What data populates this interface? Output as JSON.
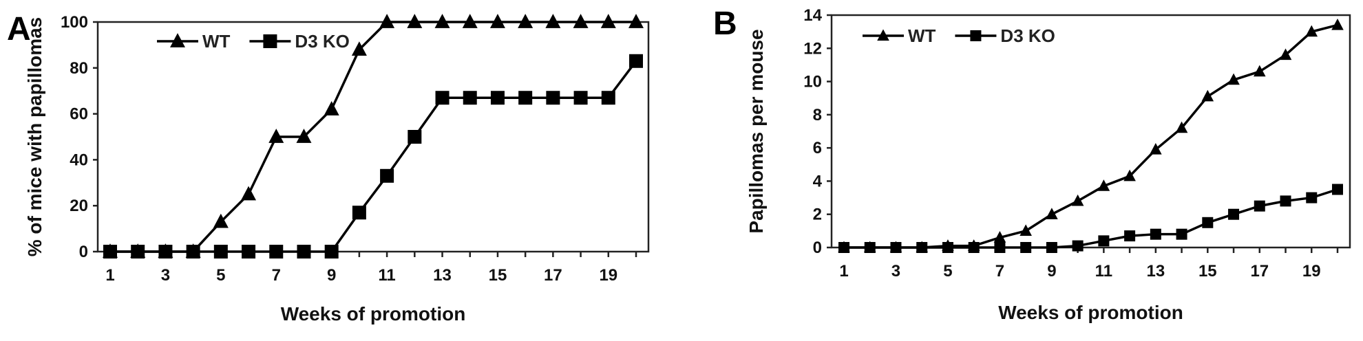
{
  "chart_data": [
    {
      "panel_label": "A",
      "type": "line",
      "xlabel": "Weeks of promotion",
      "ylabel": "% of mice with papillomas",
      "xlim": [
        1,
        20
      ],
      "ylim": [
        0,
        100
      ],
      "x_ticks": [
        1,
        3,
        5,
        7,
        9,
        11,
        13,
        15,
        17,
        19
      ],
      "y_ticks": [
        0,
        20,
        40,
        60,
        80,
        100
      ],
      "grid": false,
      "legend_position": "top-left",
      "x": [
        1,
        2,
        3,
        4,
        5,
        6,
        7,
        8,
        9,
        10,
        11,
        12,
        13,
        14,
        15,
        16,
        17,
        18,
        19,
        20
      ],
      "series": [
        {
          "name": "WT",
          "marker": "triangle",
          "values": [
            0,
            0,
            0,
            0,
            13,
            25,
            50,
            50,
            62,
            88,
            100,
            100,
            100,
            100,
            100,
            100,
            100,
            100,
            100,
            100
          ]
        },
        {
          "name": "D3 KO",
          "marker": "square",
          "values": [
            0,
            0,
            0,
            0,
            0,
            0,
            0,
            0,
            0,
            17,
            33,
            50,
            67,
            67,
            67,
            67,
            67,
            67,
            67,
            83
          ]
        }
      ]
    },
    {
      "panel_label": "B",
      "type": "line",
      "xlabel": "Weeks of promotion",
      "ylabel": "Papillomas per mouse",
      "xlim": [
        1,
        20
      ],
      "ylim": [
        0,
        14
      ],
      "x_ticks": [
        1,
        3,
        5,
        7,
        9,
        11,
        13,
        15,
        17,
        19
      ],
      "y_ticks": [
        0,
        2,
        4,
        6,
        8,
        10,
        12,
        14
      ],
      "grid": false,
      "legend_position": "top-left",
      "x": [
        1,
        2,
        3,
        4,
        5,
        6,
        7,
        8,
        9,
        10,
        11,
        12,
        13,
        14,
        15,
        16,
        17,
        18,
        19,
        20
      ],
      "series": [
        {
          "name": "WT",
          "marker": "triangle",
          "values": [
            0,
            0,
            0,
            0,
            0.1,
            0.1,
            0.6,
            1.0,
            2.0,
            2.8,
            3.7,
            4.3,
            5.9,
            7.2,
            9.1,
            10.1,
            10.6,
            11.6,
            13.0,
            13.4
          ]
        },
        {
          "name": "D3 KO",
          "marker": "square",
          "values": [
            0,
            0,
            0,
            0,
            0,
            0,
            0,
            0,
            0,
            0.1,
            0.4,
            0.7,
            0.8,
            0.8,
            1.5,
            2.0,
            2.5,
            2.8,
            3.0,
            3.5
          ]
        }
      ]
    }
  ]
}
